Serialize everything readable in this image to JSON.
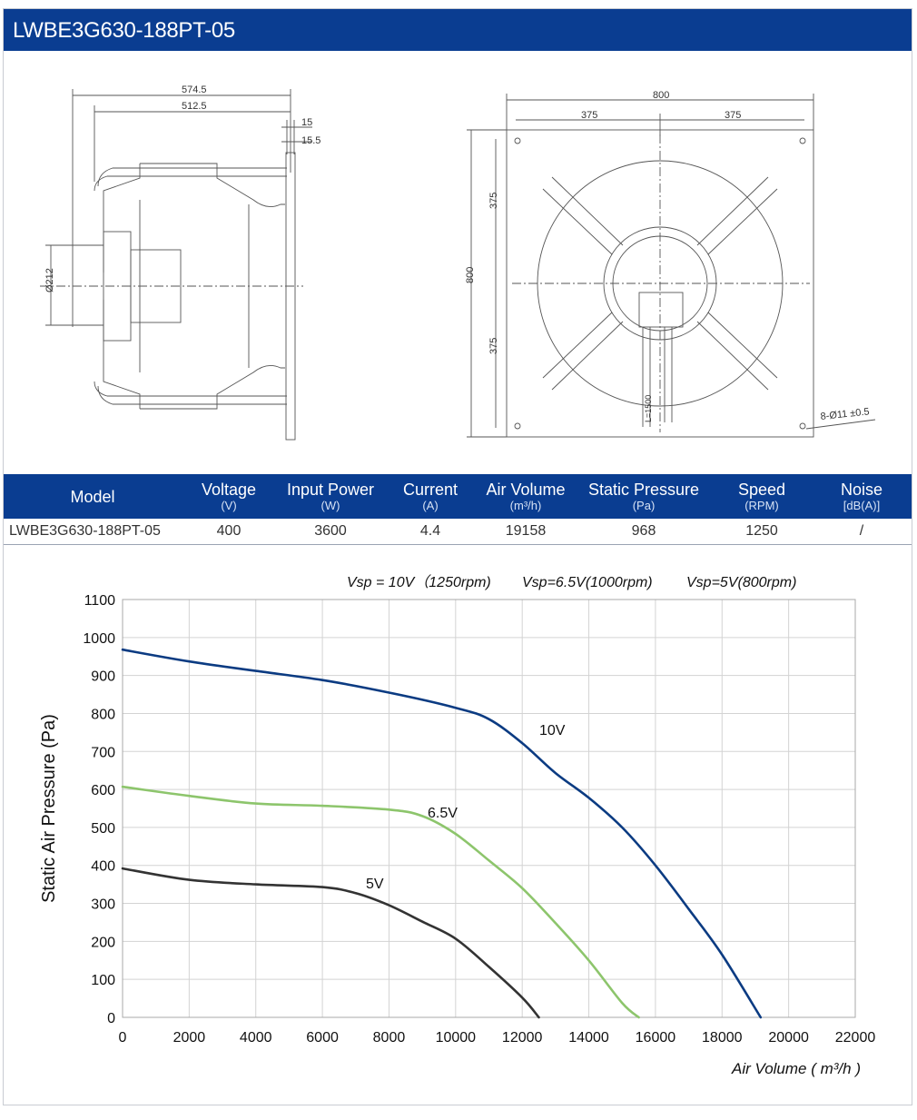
{
  "header": {
    "title": "LWBE3G630-188PT-05"
  },
  "drawing": {
    "side_view": {
      "dim_overall": "574.5",
      "dim_inner": "512.5",
      "dim_flange": "15",
      "dim_offset": "15.5",
      "dim_diameter": "Ø212"
    },
    "front_view": {
      "dim_width": "800",
      "dim_left": "375",
      "dim_right": "375",
      "dim_height": "800",
      "dim_upper": "375",
      "dim_lower": "375",
      "hole_spec": "8-Ø11 ±0.5",
      "cable_length": "L=1500"
    }
  },
  "spec_table": {
    "columns": [
      {
        "label": "Model",
        "unit": ""
      },
      {
        "label": "Voltage",
        "unit": "(V)"
      },
      {
        "label": "Input Power",
        "unit": "(W)"
      },
      {
        "label": "Current",
        "unit": "(A)"
      },
      {
        "label": "Air Volume",
        "unit": "(m³/h)"
      },
      {
        "label": "Static Pressure",
        "unit": "(Pa)"
      },
      {
        "label": "Speed",
        "unit": "(RPM)"
      },
      {
        "label": "Noise",
        "unit": "[dB(A)]"
      }
    ],
    "row": [
      "LWBE3G630-188PT-05",
      "400",
      "3600",
      "4.4",
      "19158",
      "968",
      "1250",
      "/"
    ]
  },
  "chart_data": {
    "type": "line",
    "title": "",
    "legend_text": [
      "Vsp = 10V（1250rpm)",
      "Vsp=6.5V(1000rpm)",
      "Vsp=5V(800rpm)"
    ],
    "xlabel": "Air Volume ( m³/h )",
    "ylabel": "Static Air Pressure  (Pa)",
    "xlim": [
      0,
      22000
    ],
    "ylim": [
      0,
      1100
    ],
    "x_ticks": [
      0,
      2000,
      4000,
      6000,
      8000,
      10000,
      12000,
      14000,
      16000,
      18000,
      20000,
      22000
    ],
    "y_ticks": [
      0,
      100,
      200,
      300,
      400,
      500,
      600,
      700,
      800,
      900,
      1000,
      1100
    ],
    "grid": true,
    "series": [
      {
        "name": "10V",
        "color": "#0b3b82",
        "x": [
          0,
          2000,
          4000,
          6000,
          8000,
          10000,
          11000,
          12000,
          13000,
          14000,
          15000,
          16000,
          17000,
          18000,
          19158
        ],
        "y": [
          968,
          937,
          912,
          888,
          855,
          815,
          785,
          722,
          643,
          578,
          500,
          400,
          285,
          165,
          0
        ]
      },
      {
        "name": "6.5V",
        "color": "#8dc56c",
        "x": [
          0,
          2000,
          4000,
          6000,
          8000,
          9000,
          10000,
          11000,
          12000,
          13000,
          14000,
          15000,
          15500
        ],
        "y": [
          607,
          583,
          563,
          557,
          547,
          530,
          483,
          413,
          340,
          248,
          150,
          38,
          0
        ]
      },
      {
        "name": "5V",
        "color": "#333333",
        "x": [
          0,
          2000,
          4000,
          6000,
          7000,
          8000,
          9000,
          10000,
          11000,
          12000,
          12500
        ],
        "y": [
          392,
          362,
          350,
          343,
          327,
          295,
          252,
          207,
          133,
          52,
          0
        ]
      }
    ]
  }
}
